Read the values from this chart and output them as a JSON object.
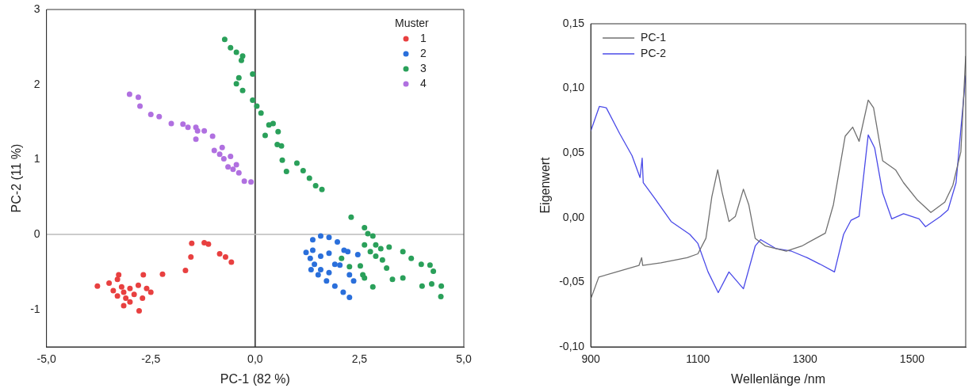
{
  "chart_data": [
    {
      "type": "scatter",
      "xlabel": "PC-1 (82 %)",
      "ylabel": "PC-2 (11 %)",
      "legend_title": "Muster",
      "legend": "top right",
      "marker": "circle",
      "xlim": [
        -5,
        5
      ],
      "ylim": [
        -1.5,
        3
      ],
      "xticks": [
        {
          "value": -5,
          "label": "-5,0"
        },
        {
          "value": -2.5,
          "label": "-2,5"
        },
        {
          "value": 0,
          "label": "0,0"
        },
        {
          "value": 2.5,
          "label": "2,5"
        },
        {
          "value": 5,
          "label": "5,0"
        }
      ],
      "yticks": [
        -1,
        0,
        1,
        2,
        3
      ],
      "ref_lines": [
        {
          "axis": "x",
          "value": 0,
          "color": "#555555"
        },
        {
          "axis": "y",
          "value": 0,
          "color": "#bbbbbb"
        }
      ],
      "series": [
        {
          "name": "1",
          "color": "#e84040",
          "x": [
            -3.15,
            -1.52,
            -1.22,
            -1.12,
            -0.85,
            -0.71,
            -0.57,
            -1.54,
            -1.67,
            -2.22,
            -2.68,
            -2.78,
            -3.78,
            -2.5,
            -3.27,
            -3.5,
            -3.3,
            -3.2,
            -3.0,
            -2.9,
            -3.1,
            -3.3,
            -3.0,
            -2.8,
            -2.7,
            -3.4,
            -3.15,
            -2.6
          ],
          "values": [
            -0.77,
            -0.12,
            -0.11,
            -0.13,
            -0.26,
            -0.3,
            -0.37,
            -0.3,
            -0.48,
            -0.53,
            -0.54,
            -1.02,
            -0.69,
            -0.77,
            -0.54,
            -0.65,
            -0.6,
            -0.7,
            -0.72,
            -0.8,
            -0.85,
            -0.82,
            -0.9,
            -0.68,
            -0.85,
            -0.75,
            -0.95,
            -0.72
          ]
        },
        {
          "name": "2",
          "color": "#2a6fdb",
          "x": [
            1.38,
            1.57,
            1.77,
            1.97,
            2.13,
            2.22,
            2.46,
            1.38,
            1.57,
            1.77,
            1.42,
            1.57,
            1.77,
            1.91,
            2.03,
            2.26,
            2.36,
            1.71,
            1.91,
            2.11,
            2.26,
            1.34,
            1.51,
            1.22,
            1.32
          ],
          "values": [
            -0.07,
            -0.02,
            -0.04,
            -0.1,
            -0.21,
            -0.23,
            -0.27,
            -0.21,
            -0.29,
            -0.25,
            -0.4,
            -0.47,
            -0.51,
            -0.4,
            -0.41,
            -0.54,
            -0.62,
            -0.62,
            -0.69,
            -0.77,
            -0.84,
            -0.47,
            -0.54,
            -0.24,
            -0.32
          ]
        },
        {
          "name": "3",
          "color": "#2aa05a",
          "x": [
            2.3,
            2.62,
            2.7,
            2.82,
            2.62,
            2.89,
            3.01,
            3.21,
            2.76,
            2.89,
            3.05,
            3.15,
            3.54,
            3.74,
            3.98,
            4.19,
            4.27,
            4.46,
            4.45,
            4.23,
            4.0,
            3.54,
            3.29,
            2.82,
            2.62,
            2.52,
            2.07,
            2.26,
            2.58,
            -0.73,
            -0.59,
            -0.45,
            -0.3,
            -0.33,
            -0.06,
            -0.39,
            -0.45,
            -0.3,
            -0.06,
            0.04,
            0.14,
            0.33,
            0.43,
            0.24,
            0.55,
            0.53,
            0.63,
            0.65,
            0.75,
            1.0,
            1.15,
            1.3,
            1.45,
            1.6
          ],
          "values": [
            0.23,
            0.09,
            0.01,
            -0.02,
            -0.14,
            -0.14,
            -0.19,
            -0.17,
            -0.23,
            -0.29,
            -0.34,
            -0.45,
            -0.23,
            -0.32,
            -0.4,
            -0.41,
            -0.49,
            -0.69,
            -0.83,
            -0.66,
            -0.69,
            -0.58,
            -0.6,
            -0.7,
            -0.58,
            -0.42,
            -0.32,
            -0.43,
            -0.54,
            2.6,
            2.49,
            2.43,
            2.38,
            2.32,
            2.14,
            2.09,
            2.01,
            1.92,
            1.79,
            1.71,
            1.62,
            1.46,
            1.48,
            1.32,
            1.37,
            1.2,
            1.18,
            0.99,
            0.84,
            0.95,
            0.85,
            0.75,
            0.65,
            0.6
          ]
        },
        {
          "name": "4",
          "color": "#b070e0",
          "x": [
            -3.01,
            -2.8,
            -2.76,
            -2.5,
            -2.3,
            -2.01,
            -1.73,
            -1.61,
            -1.42,
            -1.38,
            -1.22,
            -1.42,
            -1.02,
            -0.98,
            -0.79,
            -0.75,
            -0.59,
            -0.65,
            -0.45,
            -0.39,
            -0.26,
            -0.1,
            -0.85,
            -0.53
          ],
          "values": [
            1.87,
            1.83,
            1.71,
            1.6,
            1.57,
            1.48,
            1.47,
            1.43,
            1.43,
            1.38,
            1.38,
            1.27,
            1.31,
            1.12,
            1.16,
            1.01,
            1.04,
            0.9,
            0.93,
            0.82,
            0.71,
            0.7,
            1.07,
            0.87
          ]
        }
      ]
    },
    {
      "type": "line",
      "xlabel": "Wellenlänge /nm",
      "ylabel": "Eigenwert",
      "legend": "top left",
      "line_style": "solid",
      "xlim": [
        900,
        1600
      ],
      "ylim": [
        -0.1,
        0.15
      ],
      "xticks": [
        900,
        1100,
        1300,
        1500
      ],
      "yticks": [
        {
          "value": -0.1,
          "label": "-0,10"
        },
        {
          "value": -0.05,
          "label": "-0,05"
        },
        {
          "value": 0,
          "label": "0,00"
        },
        {
          "value": 0.05,
          "label": "0,05"
        },
        {
          "value": 0.1,
          "label": "0,10"
        },
        {
          "value": 0.15,
          "label": "0,15"
        }
      ],
      "series": [
        {
          "name": "PC-1",
          "color": "#707070",
          "x": [
            900,
            915,
            948,
            990,
            995,
            997,
            1031,
            1080,
            1100,
            1115,
            1126,
            1137,
            1145,
            1158,
            1170,
            1185,
            1195,
            1207,
            1226,
            1265,
            1294,
            1338,
            1353,
            1375,
            1389,
            1401,
            1418,
            1428,
            1445,
            1469,
            1484,
            1509,
            1535,
            1561,
            1576,
            1591,
            1600
          ],
          "values": [
            -0.063,
            -0.046,
            -0.042,
            -0.037,
            -0.031,
            -0.037,
            -0.035,
            -0.031,
            -0.028,
            -0.016,
            0.016,
            0.037,
            0.02,
            -0.003,
            0.001,
            0.022,
            0.01,
            -0.016,
            -0.022,
            -0.026,
            -0.022,
            -0.012,
            0.01,
            0.063,
            0.07,
            0.059,
            0.091,
            0.085,
            0.044,
            0.037,
            0.027,
            0.014,
            0.004,
            0.012,
            0.025,
            0.051,
            0.125
          ]
        },
        {
          "name": "PC-2",
          "color": "#4a4ae8",
          "x": [
            900,
            905,
            916,
            929,
            954,
            977,
            992,
            996,
            998,
            1021,
            1050,
            1085,
            1100,
            1119,
            1138,
            1158,
            1185,
            1207,
            1217,
            1246,
            1275,
            1304,
            1328,
            1355,
            1372,
            1386,
            1401,
            1418,
            1430,
            1445,
            1462,
            1484,
            1513,
            1525,
            1553,
            1567,
            1582,
            1600
          ],
          "values": [
            0.067,
            0.073,
            0.086,
            0.085,
            0.065,
            0.048,
            0.031,
            0.046,
            0.027,
            0.014,
            -0.003,
            -0.013,
            -0.02,
            -0.042,
            -0.058,
            -0.042,
            -0.055,
            -0.022,
            -0.017,
            -0.024,
            -0.026,
            -0.031,
            -0.036,
            -0.042,
            -0.013,
            -0.002,
            0.001,
            0.064,
            0.054,
            0.019,
            -0.001,
            0.003,
            -0.001,
            -0.007,
            0.001,
            0.006,
            0.027,
            0.11
          ]
        }
      ]
    }
  ]
}
